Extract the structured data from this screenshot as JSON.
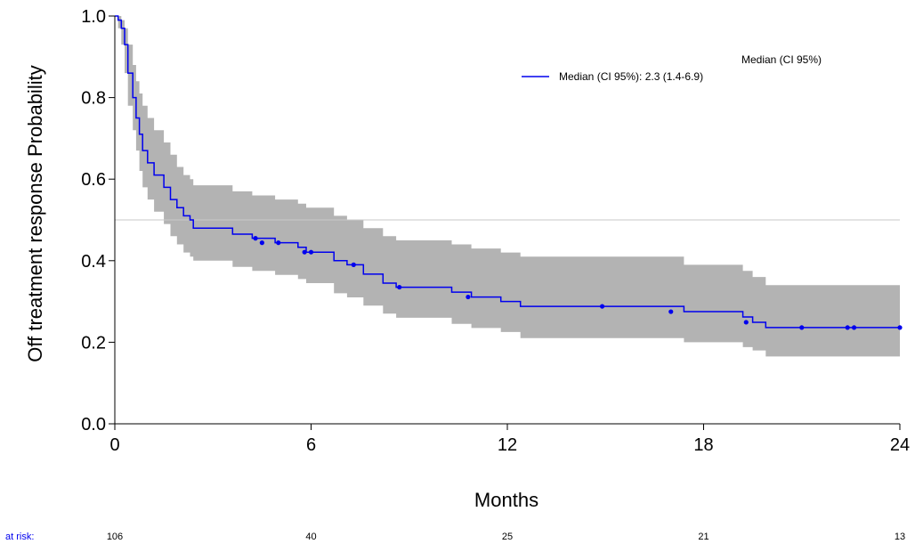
{
  "chart_data": {
    "type": "line",
    "subtype": "kaplan-meier",
    "xlabel": "Months",
    "ylabel": "Off treatment response Probability",
    "xlim": [
      0,
      24
    ],
    "ylim": [
      0,
      1
    ],
    "x_ticks": [
      "0",
      "6",
      "12",
      "18",
      "24"
    ],
    "y_ticks": [
      "0.0",
      "0.2",
      "0.4",
      "0.6",
      "0.8",
      "1.0"
    ],
    "reference_line_y": 0.5,
    "legend": {
      "title": "Median (CI 95%)",
      "entry": "Median (CI 95%): 2.3 (1.4-6.9)",
      "placement": "top-right"
    },
    "colors": {
      "curve": "#0000ee",
      "ci_band": "#b3b3b3",
      "reference": "#c8c8c8",
      "axis": "#000000"
    },
    "series": [
      {
        "name": "Median (CI 95%): 2.3 (1.4-6.9)",
        "step": [
          [
            0,
            1.0
          ],
          [
            0.1,
            0.99
          ],
          [
            0.2,
            0.97
          ],
          [
            0.3,
            0.93
          ],
          [
            0.4,
            0.86
          ],
          [
            0.55,
            0.8
          ],
          [
            0.65,
            0.75
          ],
          [
            0.75,
            0.71
          ],
          [
            0.85,
            0.67
          ],
          [
            1.0,
            0.64
          ],
          [
            1.2,
            0.61
          ],
          [
            1.5,
            0.58
          ],
          [
            1.7,
            0.55
          ],
          [
            1.9,
            0.53
          ],
          [
            2.1,
            0.51
          ],
          [
            2.3,
            0.5
          ],
          [
            2.4,
            0.48
          ],
          [
            3.6,
            0.465
          ],
          [
            4.2,
            0.455
          ],
          [
            4.9,
            0.444
          ],
          [
            5.6,
            0.433
          ],
          [
            5.85,
            0.421
          ],
          [
            6.7,
            0.4
          ],
          [
            7.1,
            0.39
          ],
          [
            7.6,
            0.367
          ],
          [
            8.2,
            0.345
          ],
          [
            8.6,
            0.335
          ],
          [
            10.3,
            0.323
          ],
          [
            10.9,
            0.311
          ],
          [
            11.8,
            0.3
          ],
          [
            12.4,
            0.288
          ],
          [
            17.4,
            0.275
          ],
          [
            19.2,
            0.262
          ],
          [
            19.5,
            0.249
          ],
          [
            19.9,
            0.236
          ],
          [
            24,
            0.236
          ]
        ],
        "ci_lower": [
          [
            0,
            1.0
          ],
          [
            0.1,
            0.97
          ],
          [
            0.2,
            0.93
          ],
          [
            0.3,
            0.86
          ],
          [
            0.4,
            0.78
          ],
          [
            0.55,
            0.72
          ],
          [
            0.65,
            0.67
          ],
          [
            0.75,
            0.62
          ],
          [
            0.85,
            0.58
          ],
          [
            1.0,
            0.55
          ],
          [
            1.2,
            0.52
          ],
          [
            1.5,
            0.49
          ],
          [
            1.7,
            0.46
          ],
          [
            1.9,
            0.44
          ],
          [
            2.1,
            0.42
          ],
          [
            2.3,
            0.41
          ],
          [
            2.4,
            0.4
          ],
          [
            3.6,
            0.385
          ],
          [
            4.2,
            0.375
          ],
          [
            4.9,
            0.365
          ],
          [
            5.6,
            0.355
          ],
          [
            5.85,
            0.345
          ],
          [
            6.7,
            0.32
          ],
          [
            7.1,
            0.31
          ],
          [
            7.6,
            0.29
          ],
          [
            8.2,
            0.27
          ],
          [
            8.6,
            0.26
          ],
          [
            10.3,
            0.245
          ],
          [
            10.9,
            0.235
          ],
          [
            11.8,
            0.225
          ],
          [
            12.4,
            0.21
          ],
          [
            17.4,
            0.2
          ],
          [
            19.2,
            0.188
          ],
          [
            19.5,
            0.18
          ],
          [
            19.9,
            0.165
          ],
          [
            24,
            0.165
          ]
        ],
        "ci_upper": [
          [
            0,
            1.0
          ],
          [
            0.1,
            1.0
          ],
          [
            0.2,
            0.99
          ],
          [
            0.3,
            0.97
          ],
          [
            0.4,
            0.93
          ],
          [
            0.55,
            0.88
          ],
          [
            0.65,
            0.84
          ],
          [
            0.75,
            0.81
          ],
          [
            0.85,
            0.78
          ],
          [
            1.0,
            0.75
          ],
          [
            1.2,
            0.72
          ],
          [
            1.5,
            0.69
          ],
          [
            1.7,
            0.66
          ],
          [
            1.9,
            0.63
          ],
          [
            2.1,
            0.61
          ],
          [
            2.3,
            0.6
          ],
          [
            2.4,
            0.585
          ],
          [
            3.6,
            0.57
          ],
          [
            4.2,
            0.56
          ],
          [
            4.9,
            0.55
          ],
          [
            5.6,
            0.54
          ],
          [
            5.85,
            0.53
          ],
          [
            6.7,
            0.51
          ],
          [
            7.1,
            0.5
          ],
          [
            7.6,
            0.48
          ],
          [
            8.2,
            0.46
          ],
          [
            8.6,
            0.45
          ],
          [
            10.3,
            0.44
          ],
          [
            10.9,
            0.43
          ],
          [
            11.8,
            0.42
          ],
          [
            12.4,
            0.41
          ],
          [
            17.4,
            0.39
          ],
          [
            19.2,
            0.375
          ],
          [
            19.5,
            0.36
          ],
          [
            19.9,
            0.34
          ],
          [
            24,
            0.34
          ]
        ],
        "censor_marks": [
          [
            4.3,
            0.455
          ],
          [
            4.5,
            0.444
          ],
          [
            5.0,
            0.444
          ],
          [
            5.8,
            0.421
          ],
          [
            6.0,
            0.421
          ],
          [
            7.3,
            0.39
          ],
          [
            8.7,
            0.335
          ],
          [
            10.8,
            0.311
          ],
          [
            14.9,
            0.288
          ],
          [
            17.0,
            0.275
          ],
          [
            19.3,
            0.249
          ],
          [
            21.0,
            0.236
          ],
          [
            22.4,
            0.236
          ],
          [
            22.6,
            0.236
          ],
          [
            24.0,
            0.236
          ]
        ]
      }
    ],
    "at_risk": {
      "label": "at risk:",
      "times": [
        0,
        6,
        12,
        18,
        24
      ],
      "counts": [
        "106",
        "40",
        "25",
        "21",
        "13"
      ]
    }
  }
}
